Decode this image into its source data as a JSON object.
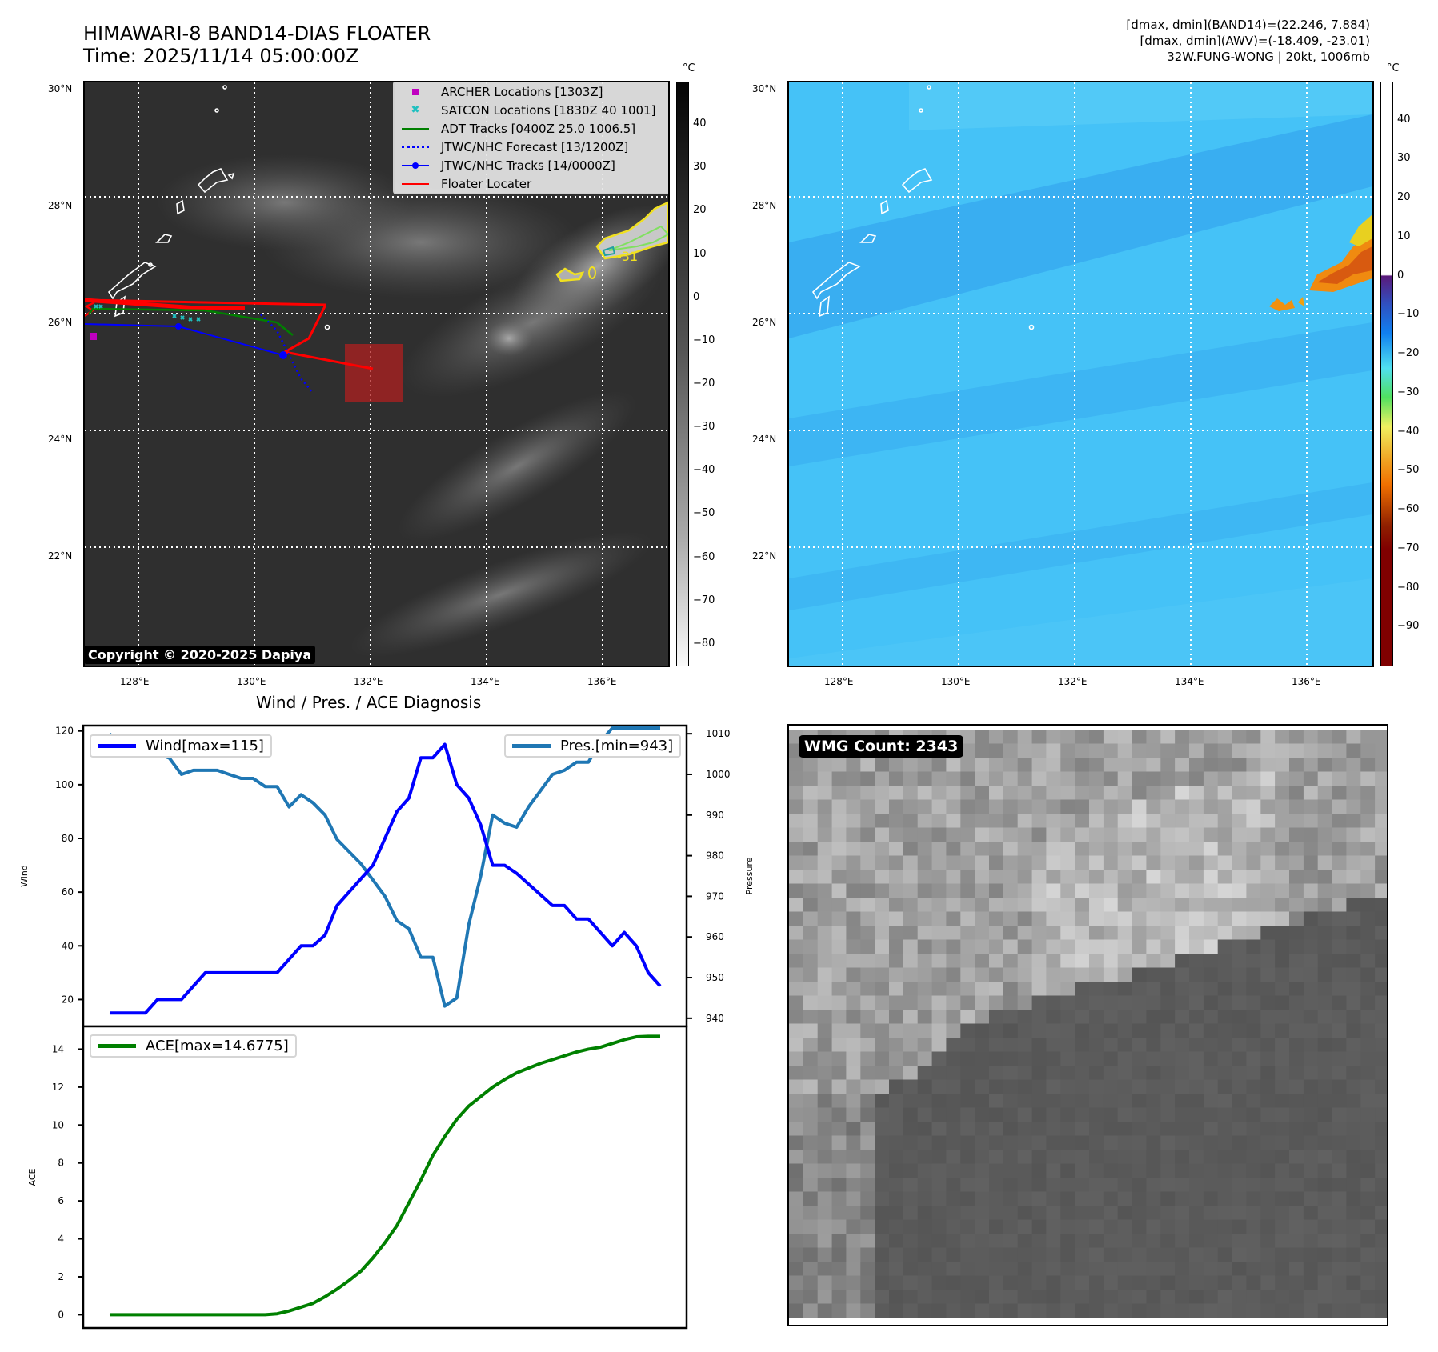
{
  "header": {
    "title_line1": "HIMAWARI-8 BAND14-DIAS FLOATER",
    "title_line2": "Time: 2025/11/14 05:00:00Z",
    "info_line1": "[dmax, dmin](BAND14)=(22.246, 7.884)",
    "info_line2": "[dmax, dmin](AWV)=(-18.409, -23.01)",
    "info_line3": "32W.FUNG-WONG | 20kt, 1006mb"
  },
  "maps": {
    "lat_labels": [
      "30°N",
      "28°N",
      "26°N",
      "24°N",
      "22°N"
    ],
    "lon_labels": [
      "128°E",
      "130°E",
      "132°E",
      "134°E",
      "136°E"
    ],
    "contour_label": "-31",
    "copyright": "Copyright © 2020-2025 Dapiya",
    "unit": "°C",
    "gray_colorbar_ticks": [
      "40",
      "30",
      "20",
      "10",
      "0",
      "−10",
      "−20",
      "−30",
      "−40",
      "−50",
      "−60",
      "−70",
      "−80"
    ],
    "color_colorbar_ticks": [
      "40",
      "30",
      "20",
      "10",
      "0",
      "−10",
      "−20",
      "−30",
      "−40",
      "−50",
      "−60",
      "−70",
      "−80",
      "−90"
    ],
    "legend": [
      {
        "label": "ARCHER Locations [1303Z]",
        "symbol": "square",
        "color": "#c000c0"
      },
      {
        "label": "SATCON Locations [1830Z 40 1001]",
        "symbol": "x",
        "color": "#20c0c0"
      },
      {
        "label": "ADT Tracks [0400Z 25.0 1006.5]",
        "symbol": "line",
        "color": "#008000"
      },
      {
        "label": "JTWC/NHC Forecast [13/1200Z]",
        "symbol": "dotted",
        "color": "#0000ff"
      },
      {
        "label": "JTWC/NHC Tracks [14/0000Z]",
        "symbol": "line-dot",
        "color": "#0000ff"
      },
      {
        "label": "Floater Locater",
        "symbol": "line",
        "color": "#ff0000"
      }
    ]
  },
  "wmg": {
    "label": "WMG Count: 2343"
  },
  "chart_data": [
    {
      "type": "line",
      "title": "Wind / Pres. / ACE Diagnosis",
      "ylabel": "Wind",
      "ylabel_right": "Pressure",
      "ylim": [
        10,
        122
      ],
      "ylim_right": [
        938,
        1012
      ],
      "yticks": [
        "120",
        "100",
        "80",
        "60",
        "40",
        "20"
      ],
      "yticks_right": [
        "1010",
        "1000",
        "990",
        "980",
        "970",
        "960",
        "950",
        "940"
      ],
      "x": [
        0,
        1,
        2,
        3,
        4,
        5,
        6,
        7,
        8,
        9,
        10,
        11,
        12,
        13,
        14,
        15,
        16,
        17,
        18,
        19,
        20,
        21,
        22,
        23,
        24,
        25,
        26,
        27,
        28,
        29,
        30,
        31,
        32,
        33,
        34,
        35,
        36,
        37,
        38,
        39,
        40,
        41,
        42,
        43,
        44,
        45,
        46
      ],
      "series": [
        {
          "name": "Wind[max=115]",
          "color": "#0000ff",
          "values": [
            15,
            15,
            15,
            15,
            20,
            20,
            20,
            25,
            30,
            30,
            30,
            30,
            30,
            30,
            30,
            35,
            40,
            40,
            44,
            55,
            60,
            65,
            70,
            80,
            90,
            95,
            110,
            110,
            115,
            100,
            95,
            85,
            70,
            70,
            67,
            63,
            59,
            55,
            55,
            50,
            50,
            45,
            40,
            45,
            40,
            30,
            25
          ]
        },
        {
          "name": "Pres.[min=943]",
          "color": "#1f77b4",
          "values": [
            1010,
            1006,
            1006,
            1006,
            1005,
            1004,
            1000,
            1001,
            1001,
            1001,
            1000,
            999,
            999,
            997,
            997,
            992,
            995,
            993,
            990,
            984,
            981,
            978,
            974,
            970,
            964,
            962,
            955,
            955,
            943,
            945,
            963,
            975,
            990,
            988,
            987,
            992,
            996,
            1000,
            1001,
            1003,
            1003,
            1008,
            1012,
            1012,
            1013,
            1014,
            1015
          ]
        }
      ]
    },
    {
      "type": "line",
      "ylabel": "ACE",
      "ylim": [
        -0.7,
        15.2
      ],
      "yticks": [
        "14",
        "12",
        "10",
        "8",
        "6",
        "4",
        "2",
        "0"
      ],
      "x": [
        0,
        1,
        2,
        3,
        4,
        5,
        6,
        7,
        8,
        9,
        10,
        11,
        12,
        13,
        14,
        15,
        16,
        17,
        18,
        19,
        20,
        21,
        22,
        23,
        24,
        25,
        26,
        27,
        28,
        29,
        30,
        31,
        32,
        33,
        34,
        35,
        36,
        37,
        38,
        39,
        40,
        41,
        42,
        43,
        44,
        45,
        46
      ],
      "series": [
        {
          "name": "ACE[max=14.6775]",
          "color": "#008000",
          "values": [
            0,
            0,
            0,
            0,
            0,
            0,
            0,
            0,
            0,
            0,
            0,
            0,
            0,
            0,
            0.05,
            0.2,
            0.4,
            0.6,
            0.95,
            1.35,
            1.8,
            2.3,
            3.0,
            3.8,
            4.7,
            5.9,
            7.1,
            8.4,
            9.4,
            10.3,
            11.0,
            11.5,
            12.0,
            12.4,
            12.75,
            13.0,
            13.25,
            13.45,
            13.65,
            13.85,
            14.0,
            14.1,
            14.3,
            14.5,
            14.65,
            14.68,
            14.68
          ]
        }
      ]
    }
  ]
}
